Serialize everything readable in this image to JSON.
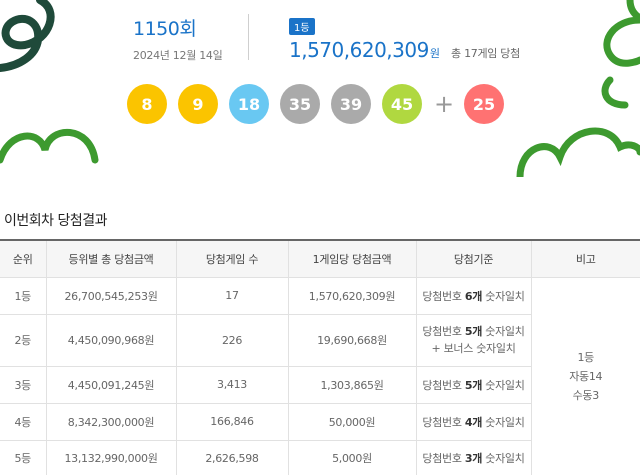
{
  "draw": {
    "round": "1150회",
    "date": "2024년 12월 14일"
  },
  "first_prize": {
    "badge": "1등",
    "amount": "1,570,620,309",
    "unit": "원",
    "games": "총 17게임 당첨"
  },
  "balls": [
    {
      "num": "8",
      "color": "#fbc400"
    },
    {
      "num": "9",
      "color": "#fbc400"
    },
    {
      "num": "18",
      "color": "#69c8f2"
    },
    {
      "num": "35",
      "color": "#aaaaaa"
    },
    {
      "num": "39",
      "color": "#aaaaaa"
    },
    {
      "num": "45",
      "color": "#b0d840"
    }
  ],
  "plus_sign": "+",
  "bonus_ball": {
    "num": "25",
    "color": "#ff7272"
  },
  "result_title": "이번회차 당첨결과",
  "table": {
    "headers": [
      "순위",
      "등위별 총 당첨금액",
      "당첨게임 수",
      "1게임당 당첨금액",
      "당첨기준",
      "비고"
    ],
    "rows": [
      {
        "rank": "1등",
        "total": "26,700,545,253원",
        "games": "17",
        "per_game": "1,570,620,309원",
        "crit_pre": "당첨번호 ",
        "crit_strong": "6개",
        "crit_post": " 숫자일치",
        "crit_line2": ""
      },
      {
        "rank": "2등",
        "total": "4,450,090,968원",
        "games": "226",
        "per_game": "19,690,668원",
        "crit_pre": "당첨번호 ",
        "crit_strong": "5개",
        "crit_post": " 숫자일치",
        "crit_line2": "+ 보너스 숫자일치"
      },
      {
        "rank": "3등",
        "total": "4,450,091,245원",
        "games": "3,413",
        "per_game": "1,303,865원",
        "crit_pre": "당첨번호 ",
        "crit_strong": "5개",
        "crit_post": " 숫자일치",
        "crit_line2": ""
      },
      {
        "rank": "4등",
        "total": "8,342,300,000원",
        "games": "166,846",
        "per_game": "50,000원",
        "crit_pre": "당첨번호 ",
        "crit_strong": "4개",
        "crit_post": " 숫자일치",
        "crit_line2": ""
      },
      {
        "rank": "5등",
        "total": "13,132,990,000원",
        "games": "2,626,598",
        "per_game": "5,000원",
        "crit_pre": "당첨번호 ",
        "crit_strong": "3개",
        "crit_post": " 숫자일치",
        "crit_line2": ""
      }
    ],
    "note": {
      "line1": "1등",
      "line2": "자동14",
      "line3": "수동3"
    }
  },
  "colors": {
    "accent": "#1a73c8",
    "deco_green": "#3d9a2f",
    "deco_dark": "#1f4a3a"
  }
}
